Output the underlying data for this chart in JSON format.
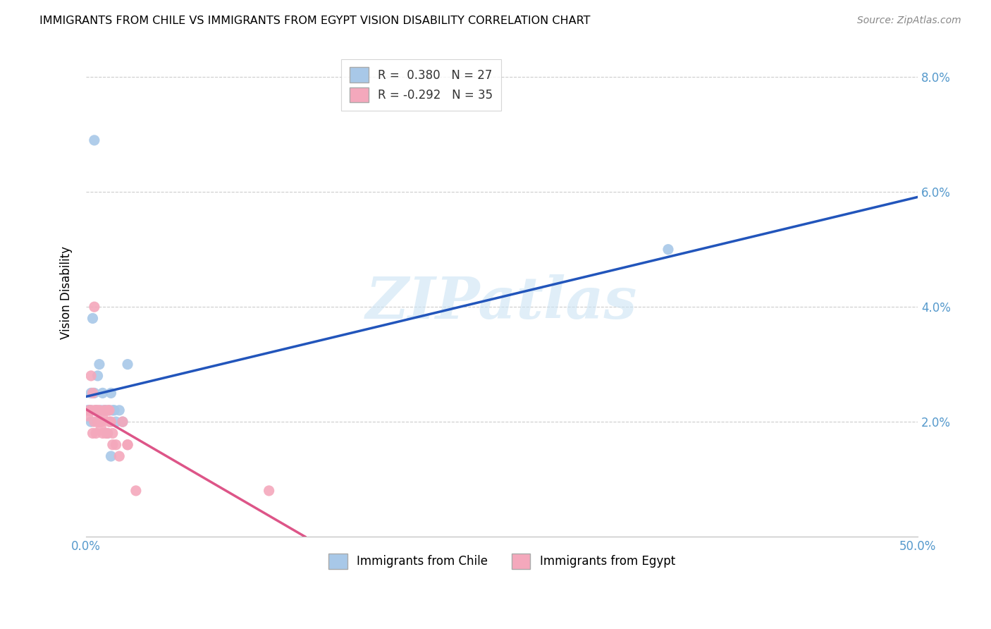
{
  "title": "IMMIGRANTS FROM CHILE VS IMMIGRANTS FROM EGYPT VISION DISABILITY CORRELATION CHART",
  "source": "Source: ZipAtlas.com",
  "ylabel": "Vision Disability",
  "xlim": [
    0.0,
    0.5
  ],
  "ylim": [
    0.0,
    0.085
  ],
  "xticks": [
    0.0,
    0.1,
    0.2,
    0.3,
    0.4,
    0.5
  ],
  "xticklabels": [
    "0.0%",
    "",
    "",
    "",
    "",
    "50.0%"
  ],
  "yticks": [
    0.0,
    0.02,
    0.04,
    0.06,
    0.08
  ],
  "yticklabels_right": [
    "",
    "2.0%",
    "4.0%",
    "6.0%",
    "8.0%"
  ],
  "chile_color": "#a8c8e8",
  "egypt_color": "#f4a8bc",
  "chile_line_color": "#2255bb",
  "egypt_line_color": "#dd5588",
  "watermark_text": "ZIPatlas",
  "chile_scatter": [
    [
      0.004,
      0.038
    ],
    [
      0.005,
      0.025
    ],
    [
      0.006,
      0.022
    ],
    [
      0.007,
      0.028
    ],
    [
      0.008,
      0.03
    ],
    [
      0.009,
      0.022
    ],
    [
      0.01,
      0.025
    ],
    [
      0.011,
      0.022
    ],
    [
      0.012,
      0.022
    ],
    [
      0.013,
      0.018
    ],
    [
      0.014,
      0.022
    ],
    [
      0.015,
      0.025
    ],
    [
      0.016,
      0.022
    ],
    [
      0.017,
      0.022
    ],
    [
      0.018,
      0.02
    ],
    [
      0.02,
      0.022
    ],
    [
      0.022,
      0.02
    ],
    [
      0.025,
      0.03
    ],
    [
      0.003,
      0.02
    ],
    [
      0.002,
      0.022
    ],
    [
      0.002,
      0.022
    ],
    [
      0.001,
      0.022
    ],
    [
      0.003,
      0.025
    ],
    [
      0.003,
      0.022
    ],
    [
      0.35,
      0.05
    ],
    [
      0.015,
      0.014
    ],
    [
      0.005,
      0.069
    ]
  ],
  "egypt_scatter": [
    [
      0.001,
      0.021
    ],
    [
      0.002,
      0.022
    ],
    [
      0.003,
      0.028
    ],
    [
      0.003,
      0.022
    ],
    [
      0.004,
      0.025
    ],
    [
      0.004,
      0.018
    ],
    [
      0.005,
      0.04
    ],
    [
      0.005,
      0.022
    ],
    [
      0.005,
      0.02
    ],
    [
      0.006,
      0.022
    ],
    [
      0.006,
      0.018
    ],
    [
      0.007,
      0.022
    ],
    [
      0.007,
      0.02
    ],
    [
      0.008,
      0.022
    ],
    [
      0.008,
      0.02
    ],
    [
      0.009,
      0.02
    ],
    [
      0.009,
      0.019
    ],
    [
      0.01,
      0.021
    ],
    [
      0.01,
      0.018
    ],
    [
      0.011,
      0.022
    ],
    [
      0.012,
      0.018
    ],
    [
      0.013,
      0.022
    ],
    [
      0.013,
      0.018
    ],
    [
      0.014,
      0.022
    ],
    [
      0.014,
      0.02
    ],
    [
      0.015,
      0.02
    ],
    [
      0.016,
      0.018
    ],
    [
      0.016,
      0.016
    ],
    [
      0.018,
      0.016
    ],
    [
      0.02,
      0.014
    ],
    [
      0.022,
      0.02
    ],
    [
      0.025,
      0.016
    ],
    [
      0.025,
      0.016
    ],
    [
      0.03,
      0.008
    ],
    [
      0.11,
      0.008
    ]
  ]
}
